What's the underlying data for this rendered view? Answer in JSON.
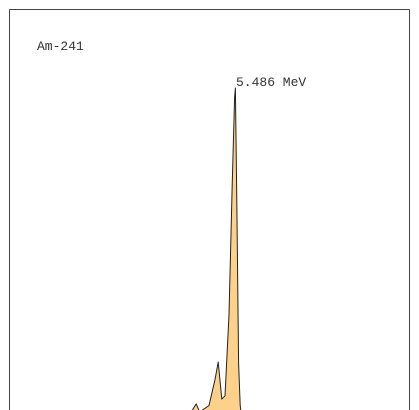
{
  "chart_data": {
    "type": "area",
    "title": "Am-241",
    "annotation": "5.486 MeV",
    "x": [
      5.37,
      5.378,
      5.388,
      5.395,
      5.4,
      5.42,
      5.435,
      5.443,
      5.452,
      5.46,
      5.47,
      5.478,
      5.484,
      5.486,
      5.49,
      5.494,
      5.498,
      5.5
    ],
    "values": [
      0,
      0.5,
      2.5,
      0.5,
      0.3,
      2,
      10,
      15.4,
      4,
      5,
      30,
      70,
      97,
      100,
      60,
      15,
      2,
      0
    ],
    "color": "#fdd18a",
    "xlim": [
      4.92,
      5.92
    ],
    "ylim": [
      0,
      100
    ]
  }
}
